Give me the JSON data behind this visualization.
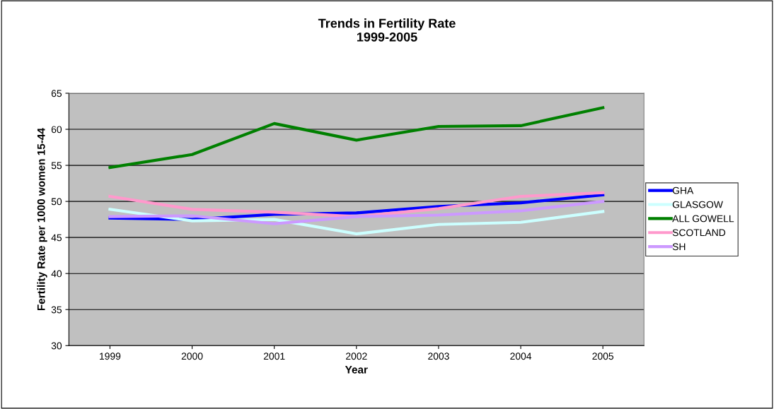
{
  "chart_data": {
    "type": "line",
    "title": "Trends in Fertility Rate\n1999-2005",
    "xlabel": "Year",
    "ylabel": "Fertility Rate per 1000 women 15-44",
    "categories": [
      "1999",
      "2000",
      "2001",
      "2002",
      "2003",
      "2004",
      "2005"
    ],
    "series": [
      {
        "name": "GHA",
        "color": "#0000ff",
        "values": [
          47.7,
          47.5,
          48.2,
          48.4,
          49.3,
          49.8,
          50.9
        ]
      },
      {
        "name": "GLASGOW",
        "color": "#ccffff",
        "values": [
          48.9,
          47.3,
          47.5,
          45.5,
          46.8,
          47.1,
          48.6
        ]
      },
      {
        "name": "ALL GOWELL",
        "color": "#008000",
        "values": [
          54.7,
          56.5,
          60.8,
          58.5,
          60.4,
          60.5,
          63.0
        ]
      },
      {
        "name": "SCOTLAND",
        "color": "#ff99cc",
        "values": [
          50.7,
          48.9,
          48.5,
          47.9,
          49.0,
          50.7,
          51.2
        ]
      },
      {
        "name": "SH",
        "color": "#cc99ff",
        "values": [
          47.9,
          48.0,
          46.9,
          47.9,
          48.1,
          48.7,
          50.0
        ]
      }
    ],
    "ylim": [
      30,
      65
    ],
    "yticks": [
      30,
      35,
      40,
      45,
      50,
      55,
      60,
      65
    ],
    "grid": "y",
    "legend": "right",
    "marker": "none",
    "line_style": "solid"
  }
}
